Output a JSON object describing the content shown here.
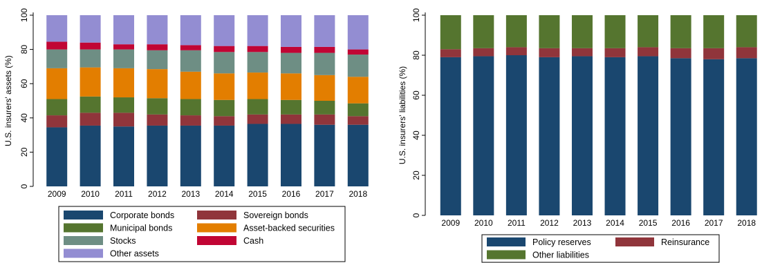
{
  "chart_data": [
    {
      "type": "stacked-bar",
      "ylabel": "U.S. insurers' assets (%)",
      "ylim": [
        0,
        100
      ],
      "yticks": [
        "0",
        "20",
        "40",
        "60",
        "80",
        "100"
      ],
      "categories": [
        "2009",
        "2010",
        "2011",
        "2012",
        "2013",
        "2014",
        "2015",
        "2016",
        "2017",
        "2018"
      ],
      "legend_position": "bottom",
      "series": [
        {
          "name": "Corporate bonds",
          "color": "#1a476f",
          "values": [
            34.5,
            35.5,
            35.0,
            35.5,
            35.5,
            35.5,
            36.5,
            36.5,
            36.0,
            36.0
          ]
        },
        {
          "name": "Sovereign bonds",
          "color": "#90353b",
          "values": [
            7.0,
            7.5,
            8.0,
            6.5,
            6.0,
            5.5,
            5.5,
            5.5,
            6.0,
            5.0
          ]
        },
        {
          "name": "Municipal bonds",
          "color": "#55752f",
          "values": [
            9.5,
            9.5,
            9.0,
            9.5,
            9.5,
            9.5,
            9.0,
            8.5,
            8.0,
            7.5
          ]
        },
        {
          "name": "Asset-backed securities",
          "color": "#e37e00",
          "values": [
            18.0,
            17.0,
            17.0,
            17.0,
            16.0,
            15.5,
            15.5,
            15.5,
            15.0,
            15.5
          ]
        },
        {
          "name": "Stocks",
          "color": "#6e8e84",
          "values": [
            11.0,
            10.5,
            11.0,
            11.0,
            12.5,
            12.5,
            12.0,
            12.0,
            13.0,
            13.0
          ]
        },
        {
          "name": "Cash",
          "color": "#c10534",
          "values": [
            4.5,
            4.0,
            3.0,
            3.5,
            3.0,
            3.5,
            3.5,
            3.5,
            3.5,
            3.0
          ]
        },
        {
          "name": "Other assets",
          "color": "#938dd2",
          "values": [
            15.5,
            16.0,
            17.0,
            17.0,
            17.5,
            18.0,
            18.0,
            18.5,
            18.5,
            20.0
          ]
        }
      ]
    },
    {
      "type": "stacked-bar",
      "ylabel": "U.S. insurers' liabilities (%)",
      "ylim": [
        0,
        100
      ],
      "yticks": [
        "0",
        "20",
        "40",
        "60",
        "80",
        "100"
      ],
      "categories": [
        "2009",
        "2010",
        "2011",
        "2012",
        "2013",
        "2014",
        "2015",
        "2016",
        "2017",
        "2018"
      ],
      "legend_position": "bottom",
      "series": [
        {
          "name": "Policy reserves",
          "color": "#1a476f",
          "values": [
            79.0,
            79.5,
            80.0,
            79.0,
            79.5,
            79.0,
            79.5,
            78.5,
            78.0,
            78.5
          ]
        },
        {
          "name": "Reinsurance",
          "color": "#90353b",
          "values": [
            4.0,
            4.0,
            4.0,
            4.5,
            4.0,
            4.5,
            4.5,
            5.0,
            5.5,
            5.5
          ]
        },
        {
          "name": "Other liabilities",
          "color": "#55752f",
          "values": [
            17.0,
            16.5,
            16.0,
            16.5,
            16.5,
            16.5,
            16.0,
            16.5,
            16.5,
            16.0
          ]
        }
      ]
    }
  ]
}
